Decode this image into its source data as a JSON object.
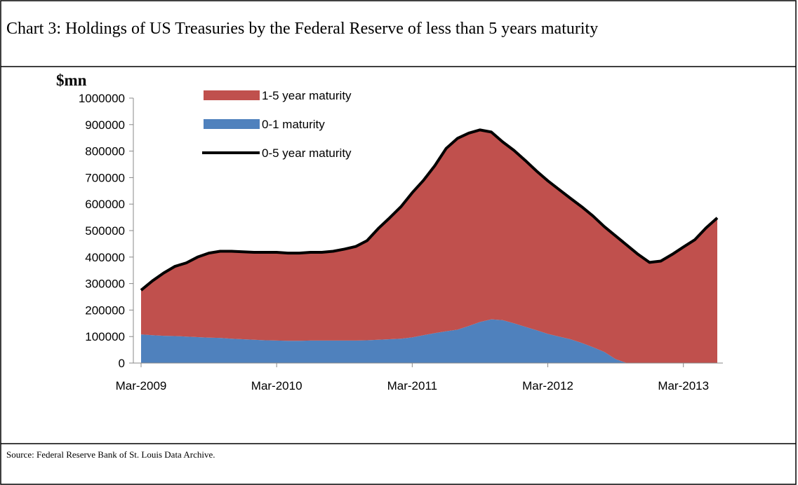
{
  "chart_data": {
    "type": "area",
    "title": "Chart 3: Holdings of US Treasuries by the Federal Reserve of less than 5 years maturity",
    "y_label": "$mn",
    "source": "Source: Federal Reserve Bank of St. Louis Data Archive.",
    "categories": [
      "Mar-2009",
      null,
      null,
      null,
      null,
      null,
      null,
      null,
      null,
      null,
      null,
      null,
      "Mar-2010",
      null,
      null,
      null,
      null,
      null,
      null,
      null,
      null,
      null,
      null,
      null,
      "Mar-2011",
      null,
      null,
      null,
      null,
      null,
      null,
      null,
      null,
      null,
      null,
      null,
      "Mar-2012",
      null,
      null,
      null,
      null,
      null,
      null,
      null,
      null,
      null,
      null,
      null,
      "Mar-2013",
      null,
      null,
      null
    ],
    "series": [
      {
        "name": "1-5 year maturity",
        "color": "#c0504d",
        "type": "area",
        "values": [
          167000,
          205000,
          237000,
          263000,
          278000,
          302000,
          319000,
          327000,
          330000,
          330000,
          330000,
          332000,
          333000,
          331000,
          331000,
          333000,
          333000,
          337000,
          345000,
          355000,
          376000,
          420000,
          458000,
          498000,
          546000,
          585000,
          632000,
          690000,
          722000,
          728000,
          725000,
          707000,
          673000,
          653000,
          628000,
          601000,
          578000,
          555000,
          532000,
          514000,
          495000,
          473000,
          465000,
          445000,
          410000,
          380000,
          385000,
          410000,
          438000,
          465000,
          510000,
          548000
        ]
      },
      {
        "name": "0-1 maturity",
        "color": "#4f81bd",
        "type": "area",
        "values": [
          108000,
          105000,
          103000,
          102000,
          100000,
          98000,
          96000,
          95000,
          92000,
          90000,
          88000,
          86000,
          85000,
          84000,
          84000,
          85000,
          85000,
          85000,
          85000,
          85000,
          86000,
          88000,
          90000,
          92000,
          97000,
          105000,
          113000,
          120000,
          126000,
          140000,
          155000,
          165000,
          162000,
          150000,
          137000,
          124000,
          110000,
          100000,
          90000,
          76000,
          60000,
          42000,
          15000,
          0,
          0,
          0,
          0,
          0,
          0,
          0,
          0,
          0
        ]
      },
      {
        "name": "0-5 year maturity",
        "color": "#000000",
        "type": "line",
        "values": [
          275000,
          310000,
          340000,
          365000,
          378000,
          400000,
          415000,
          422000,
          422000,
          420000,
          418000,
          418000,
          418000,
          415000,
          415000,
          418000,
          418000,
          422000,
          430000,
          440000,
          462000,
          508000,
          548000,
          590000,
          643000,
          690000,
          745000,
          810000,
          848000,
          868000,
          880000,
          872000,
          835000,
          803000,
          765000,
          725000,
          688000,
          655000,
          622000,
          590000,
          555000,
          515000,
          480000,
          445000,
          410000,
          380000,
          385000,
          410000,
          438000,
          465000,
          510000,
          548000
        ]
      }
    ],
    "ylim": [
      0,
      1000000
    ],
    "yticks": [
      0,
      100000,
      200000,
      300000,
      400000,
      500000,
      600000,
      700000,
      800000,
      900000,
      1000000
    ]
  }
}
